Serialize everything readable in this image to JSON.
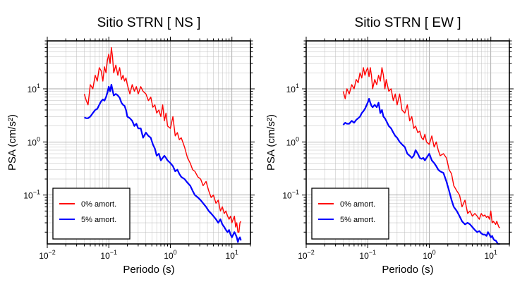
{
  "chart_data": [
    {
      "type": "line",
      "title": "Sitio STRN [ NS ]",
      "xlabel": "Periodo (s)",
      "ylabel": "PSA (cm/s²)",
      "xscale": "log",
      "yscale": "log",
      "xlim": [
        0.01,
        20
      ],
      "ylim": [
        0.012,
        80
      ],
      "x_ticks": [
        {
          "value": 0.01,
          "base": "10",
          "exp": "−2"
        },
        {
          "value": 0.1,
          "base": "10",
          "exp": "−1"
        },
        {
          "value": 1,
          "base": "10",
          "exp": "0"
        },
        {
          "value": 10,
          "base": "10",
          "exp": "1"
        }
      ],
      "y_ticks": [
        {
          "value": 0.1,
          "base": "10",
          "exp": "−1"
        },
        {
          "value": 1,
          "base": "10",
          "exp": "0"
        },
        {
          "value": 10,
          "base": "10",
          "exp": "1"
        }
      ],
      "grid": true,
      "legend_position": "bottom-left",
      "series": [
        {
          "name": "0% amort.",
          "color": "#ff0000",
          "x": [
            0.04,
            0.043,
            0.046,
            0.05,
            0.055,
            0.06,
            0.065,
            0.07,
            0.075,
            0.08,
            0.085,
            0.09,
            0.095,
            0.1,
            0.105,
            0.11,
            0.115,
            0.12,
            0.13,
            0.14,
            0.15,
            0.16,
            0.17,
            0.18,
            0.19,
            0.2,
            0.22,
            0.24,
            0.26,
            0.28,
            0.3,
            0.33,
            0.36,
            0.4,
            0.44,
            0.48,
            0.52,
            0.56,
            0.6,
            0.65,
            0.7,
            0.75,
            0.8,
            0.85,
            0.9,
            1.0,
            1.1,
            1.2,
            1.3,
            1.4,
            1.5,
            1.7,
            1.9,
            2.1,
            2.3,
            2.5,
            2.8,
            3.1,
            3.4,
            3.8,
            4.2,
            4.6,
            5.0,
            5.5,
            6.0,
            6.5,
            7.0,
            7.5,
            8.0,
            8.5,
            9.0,
            9.5,
            10.0,
            10.5,
            11.0,
            11.5,
            12.0,
            12.5,
            13.0,
            13.5,
            14.0
          ],
          "y": [
            8,
            6,
            5,
            12,
            10,
            18,
            14,
            25,
            22,
            14,
            26,
            20,
            35,
            45,
            30,
            60,
            40,
            20,
            28,
            18,
            25,
            15,
            18,
            14,
            16,
            12,
            8,
            12,
            9,
            11,
            8,
            11,
            9,
            8,
            6,
            7,
            4.5,
            5,
            3.5,
            4,
            3,
            5,
            2.5,
            3.5,
            2,
            1.8,
            3,
            1.3,
            1.5,
            1.1,
            1.2,
            0.8,
            0.5,
            0.4,
            0.3,
            0.28,
            0.22,
            0.2,
            0.15,
            0.18,
            0.12,
            0.09,
            0.1,
            0.07,
            0.08,
            0.05,
            0.06,
            0.045,
            0.05,
            0.04,
            0.035,
            0.04,
            0.03,
            0.035,
            0.04,
            0.025,
            0.03,
            0.02,
            0.02,
            0.03,
            0.032
          ]
        },
        {
          "name": "5% amort.",
          "color": "#0000ff",
          "x": [
            0.04,
            0.043,
            0.046,
            0.05,
            0.055,
            0.06,
            0.065,
            0.07,
            0.075,
            0.08,
            0.085,
            0.09,
            0.095,
            0.1,
            0.105,
            0.11,
            0.115,
            0.12,
            0.13,
            0.14,
            0.15,
            0.16,
            0.17,
            0.18,
            0.19,
            0.2,
            0.22,
            0.24,
            0.26,
            0.28,
            0.3,
            0.33,
            0.36,
            0.4,
            0.44,
            0.48,
            0.52,
            0.56,
            0.6,
            0.65,
            0.7,
            0.75,
            0.8,
            0.85,
            0.9,
            1.0,
            1.1,
            1.2,
            1.3,
            1.4,
            1.5,
            1.7,
            1.9,
            2.1,
            2.3,
            2.5,
            2.8,
            3.1,
            3.4,
            3.8,
            4.2,
            4.6,
            5.0,
            5.5,
            6.0,
            6.5,
            7.0,
            7.5,
            8.0,
            8.5,
            9.0,
            9.5,
            10.0,
            10.5,
            11.0,
            11.5,
            12.0,
            12.5,
            13.0,
            13.5,
            14.0
          ],
          "y": [
            2.9,
            2.8,
            2.8,
            3.0,
            3.5,
            4.0,
            4.2,
            5.0,
            5.8,
            6.3,
            6.0,
            7.0,
            8.5,
            11,
            9.0,
            12,
            9.5,
            7.5,
            8.0,
            7.5,
            6.8,
            5.5,
            5.0,
            4.8,
            4.0,
            3.0,
            2.8,
            2.5,
            2.0,
            2.2,
            1.8,
            1.8,
            1.2,
            1.5,
            1.3,
            1.2,
            0.9,
            0.75,
            0.55,
            0.6,
            0.45,
            0.5,
            0.55,
            0.5,
            0.45,
            0.4,
            0.35,
            0.28,
            0.3,
            0.25,
            0.22,
            0.2,
            0.17,
            0.15,
            0.12,
            0.1,
            0.09,
            0.08,
            0.07,
            0.06,
            0.05,
            0.045,
            0.04,
            0.035,
            0.03,
            0.035,
            0.028,
            0.025,
            0.022,
            0.02,
            0.022,
            0.018,
            0.016,
            0.018,
            0.02,
            0.018,
            0.016,
            0.013,
            0.015,
            0.016,
            0.014
          ]
        }
      ]
    },
    {
      "type": "line",
      "title": "Sitio STRN [ EW ]",
      "xlabel": "Periodo (s)",
      "ylabel": "PSA (cm/s²)",
      "xscale": "log",
      "yscale": "log",
      "xlim": [
        0.01,
        20
      ],
      "ylim": [
        0.012,
        80
      ],
      "x_ticks": [
        {
          "value": 0.01,
          "base": "10",
          "exp": "−2"
        },
        {
          "value": 0.1,
          "base": "10",
          "exp": "−1"
        },
        {
          "value": 1,
          "base": "10",
          "exp": "0"
        },
        {
          "value": 10,
          "base": "10",
          "exp": "1"
        }
      ],
      "y_ticks": [
        {
          "value": 0.1,
          "base": "10",
          "exp": "−1"
        },
        {
          "value": 1,
          "base": "10",
          "exp": "0"
        },
        {
          "value": 10,
          "base": "10",
          "exp": "1"
        }
      ],
      "grid": true,
      "legend_position": "bottom-left",
      "series": [
        {
          "name": "0% amort.",
          "color": "#ff0000",
          "x": [
            0.04,
            0.043,
            0.046,
            0.05,
            0.055,
            0.06,
            0.065,
            0.07,
            0.075,
            0.08,
            0.085,
            0.09,
            0.095,
            0.1,
            0.105,
            0.11,
            0.115,
            0.12,
            0.13,
            0.14,
            0.15,
            0.16,
            0.17,
            0.18,
            0.19,
            0.2,
            0.22,
            0.24,
            0.26,
            0.28,
            0.3,
            0.33,
            0.36,
            0.4,
            0.44,
            0.48,
            0.52,
            0.56,
            0.6,
            0.65,
            0.7,
            0.75,
            0.8,
            0.85,
            0.9,
            1.0,
            1.1,
            1.2,
            1.3,
            1.4,
            1.5,
            1.7,
            1.9,
            2.1,
            2.3,
            2.5,
            2.8,
            3.1,
            3.4,
            3.8,
            4.2,
            4.6,
            5.0,
            5.5,
            6.0,
            6.5,
            7.0,
            7.5,
            8.0,
            8.5,
            9.0,
            9.5,
            10.0,
            10.5,
            11.0,
            11.5,
            12.0,
            12.5,
            13.0,
            13.5,
            14.0
          ],
          "y": [
            9,
            6.5,
            10,
            8,
            12,
            10,
            15,
            13,
            20,
            16,
            25,
            18,
            22,
            25,
            17,
            25,
            18,
            10,
            15,
            12,
            18,
            14,
            25,
            18,
            10,
            15,
            9,
            10,
            6,
            8,
            5,
            8,
            4,
            3.5,
            5,
            2.5,
            3,
            1.8,
            2.0,
            1.5,
            1.6,
            1.2,
            1.1,
            1.4,
            1.0,
            0.9,
            1.3,
            0.8,
            1.0,
            0.7,
            0.55,
            0.6,
            0.5,
            0.3,
            0.25,
            0.15,
            0.12,
            0.1,
            0.06,
            0.08,
            0.045,
            0.05,
            0.04,
            0.045,
            0.04,
            0.035,
            0.045,
            0.04,
            0.042,
            0.038,
            0.04,
            0.035,
            0.05,
            0.03,
            0.032,
            0.03,
            0.028,
            0.032,
            0.028,
            0.025,
            0.024
          ]
        },
        {
          "name": "5% amort.",
          "color": "#0000ff",
          "x": [
            0.04,
            0.043,
            0.046,
            0.05,
            0.055,
            0.06,
            0.065,
            0.07,
            0.075,
            0.08,
            0.085,
            0.09,
            0.095,
            0.1,
            0.105,
            0.11,
            0.115,
            0.12,
            0.13,
            0.14,
            0.15,
            0.16,
            0.17,
            0.18,
            0.19,
            0.2,
            0.22,
            0.24,
            0.26,
            0.28,
            0.3,
            0.33,
            0.36,
            0.4,
            0.44,
            0.48,
            0.52,
            0.56,
            0.6,
            0.65,
            0.7,
            0.75,
            0.8,
            0.85,
            0.9,
            1.0,
            1.1,
            1.2,
            1.3,
            1.4,
            1.5,
            1.7,
            1.9,
            2.1,
            2.3,
            2.5,
            2.8,
            3.1,
            3.4,
            3.8,
            4.2,
            4.6,
            5.0,
            5.5,
            6.0,
            6.5,
            7.0,
            7.5,
            8.0,
            8.5,
            9.0,
            9.5,
            10.0,
            10.5,
            11.0,
            11.5,
            12.0,
            12.5,
            13.0,
            13.5,
            14.0
          ],
          "y": [
            2.1,
            2.3,
            2.2,
            2.2,
            2.5,
            2.3,
            2.6,
            2.8,
            3.0,
            3.5,
            3.8,
            4.2,
            4.8,
            5.5,
            6.5,
            5.5,
            4.8,
            4.5,
            5.0,
            4.5,
            5.5,
            3.5,
            4.0,
            3.0,
            2.8,
            2.5,
            2.0,
            1.8,
            1.5,
            1.3,
            1.2,
            1.0,
            0.9,
            0.8,
            0.6,
            0.55,
            0.5,
            0.55,
            0.7,
            0.6,
            0.5,
            0.48,
            0.5,
            0.45,
            0.5,
            0.6,
            0.45,
            0.4,
            0.35,
            0.3,
            0.28,
            0.26,
            0.18,
            0.12,
            0.08,
            0.06,
            0.05,
            0.04,
            0.032,
            0.028,
            0.03,
            0.028,
            0.025,
            0.022,
            0.02,
            0.021,
            0.019,
            0.018,
            0.018,
            0.017,
            0.02,
            0.018,
            0.016,
            0.017,
            0.015,
            0.014,
            0.014,
            0.013,
            0.012,
            0.012,
            0.012
          ]
        }
      ]
    }
  ]
}
